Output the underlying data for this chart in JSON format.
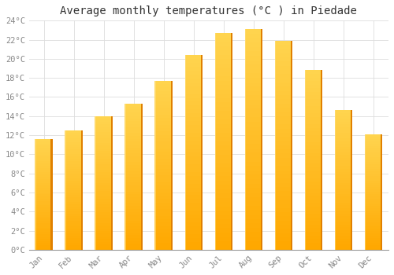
{
  "title": "Average monthly temperatures (°C ) in Piedade",
  "months": [
    "Jan",
    "Feb",
    "Mar",
    "Apr",
    "May",
    "Jun",
    "Jul",
    "Aug",
    "Sep",
    "Oct",
    "Nov",
    "Dec"
  ],
  "values": [
    11.6,
    12.5,
    14.0,
    15.3,
    17.7,
    20.4,
    22.7,
    23.1,
    21.9,
    18.8,
    14.6,
    12.1
  ],
  "bar_color_light": "#FFD060",
  "bar_color_main": "#FFA800",
  "bar_color_dark": "#E08000",
  "background_color": "#FFFFFF",
  "grid_color": "#DDDDDD",
  "ytick_labels": [
    "0°C",
    "2°C",
    "4°C",
    "6°C",
    "8°C",
    "10°C",
    "12°C",
    "14°C",
    "16°C",
    "18°C",
    "20°C",
    "22°C",
    "24°C"
  ],
  "ytick_values": [
    0,
    2,
    4,
    6,
    8,
    10,
    12,
    14,
    16,
    18,
    20,
    22,
    24
  ],
  "ylim": [
    0,
    24
  ],
  "title_fontsize": 10,
  "tick_fontsize": 7.5,
  "font_family": "monospace",
  "bar_width": 0.6
}
